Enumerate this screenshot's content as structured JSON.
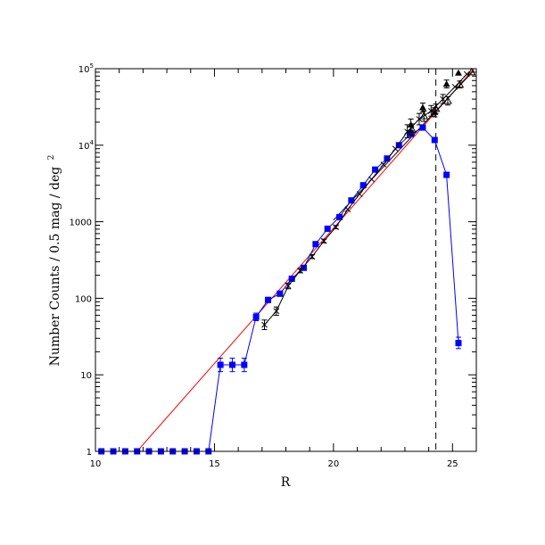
{
  "chart_data": {
    "type": "scatter",
    "xlabel": "R",
    "ylabel": "Number Counts / 0.5 mag / deg",
    "ylabel_sup": "2",
    "xlim": [
      10,
      26
    ],
    "ylim": [
      1,
      100000
    ],
    "yscale": "log",
    "x_ticks": [
      {
        "value": 10,
        "label": "10"
      },
      {
        "value": 15,
        "label": "15"
      },
      {
        "value": 20,
        "label": "20"
      },
      {
        "value": 25,
        "label": "25"
      }
    ],
    "y_ticks": [
      {
        "value": 1,
        "label": "1"
      },
      {
        "value": 10,
        "label": "10"
      },
      {
        "value": 100,
        "label": "100"
      },
      {
        "value": 1000,
        "label": "1000"
      },
      {
        "value": 10000,
        "label": "10",
        "sup": "4"
      },
      {
        "value": 100000,
        "label": "10",
        "sup": "5"
      }
    ],
    "vline": {
      "x": 24.3,
      "style": "dashed",
      "color": "#000000"
    },
    "series": [
      {
        "marker": "square",
        "color": "#0000ff",
        "connect": true,
        "points": [
          {
            "x": 10.25,
            "y": 1
          },
          {
            "x": 10.75,
            "y": 1
          },
          {
            "x": 11.25,
            "y": 1
          },
          {
            "x": 11.75,
            "y": 1
          },
          {
            "x": 12.25,
            "y": 1
          },
          {
            "x": 12.75,
            "y": 1
          },
          {
            "x": 13.25,
            "y": 1
          },
          {
            "x": 13.75,
            "y": 1
          },
          {
            "x": 14.25,
            "y": 1
          },
          {
            "x": 14.75,
            "y": 1
          },
          {
            "x": 15.25,
            "y": 13.5,
            "err": [
              11,
              16.5
            ]
          },
          {
            "x": 15.75,
            "y": 13.5,
            "err": [
              11,
              16.5
            ]
          },
          {
            "x": 16.25,
            "y": 13.5,
            "err": [
              11,
              16.5
            ]
          },
          {
            "x": 16.75,
            "y": 57,
            "err": [
              51,
              64
            ]
          },
          {
            "x": 17.25,
            "y": 95,
            "err": [
              88,
              103
            ]
          },
          {
            "x": 17.75,
            "y": 115,
            "err": [
              106,
              124
            ]
          },
          {
            "x": 18.25,
            "y": 180
          },
          {
            "x": 18.75,
            "y": 250
          },
          {
            "x": 19.25,
            "y": 510
          },
          {
            "x": 19.75,
            "y": 810
          },
          {
            "x": 20.25,
            "y": 1150
          },
          {
            "x": 20.75,
            "y": 1900
          },
          {
            "x": 21.25,
            "y": 3000
          },
          {
            "x": 21.75,
            "y": 4800
          },
          {
            "x": 22.25,
            "y": 6700
          },
          {
            "x": 22.75,
            "y": 10000
          },
          {
            "x": 23.25,
            "y": 14000
          },
          {
            "x": 23.75,
            "y": 17000
          },
          {
            "x": 24.25,
            "y": 11700
          },
          {
            "x": 24.75,
            "y": 4100
          },
          {
            "x": 25.25,
            "y": 26,
            "err": [
              22,
              31
            ]
          }
        ]
      },
      {
        "marker": "cross",
        "color": "#000000",
        "connect": true,
        "points": [
          {
            "x": 17.1,
            "y": 45,
            "err": [
              39,
              52
            ]
          },
          {
            "x": 17.6,
            "y": 68,
            "err": [
              60,
              77
            ]
          },
          {
            "x": 18.1,
            "y": 145,
            "err": [
              133,
              158
            ]
          },
          {
            "x": 18.6,
            "y": 230,
            "err": [
              215,
              246
            ]
          },
          {
            "x": 19.1,
            "y": 350,
            "err": [
              330,
              372
            ]
          },
          {
            "x": 19.6,
            "y": 560,
            "err": [
              530,
              592
            ]
          },
          {
            "x": 20.1,
            "y": 850,
            "err": [
              810,
              892
            ]
          },
          {
            "x": 20.6,
            "y": 1450
          },
          {
            "x": 21.1,
            "y": 2300
          },
          {
            "x": 21.6,
            "y": 3600
          },
          {
            "x": 22.1,
            "y": 5600
          },
          {
            "x": 22.6,
            "y": 9000
          },
          {
            "x": 23.1,
            "y": 15000,
            "err": [
              12500,
              18500
            ]
          },
          {
            "x": 23.6,
            "y": 22000,
            "err": [
              18500,
              26000
            ]
          },
          {
            "x": 24.1,
            "y": 28000,
            "err": [
              24000,
              33000
            ]
          },
          {
            "x": 24.6,
            "y": 40000,
            "err": [
              35000,
              46000
            ]
          },
          {
            "x": 25.1,
            "y": 58000
          },
          {
            "x": 25.6,
            "y": 85000
          }
        ]
      },
      {
        "marker": "triangle",
        "color": "#000000",
        "connect": false,
        "points": [
          {
            "x": 23.25,
            "y": 18500,
            "err": [
              15500,
              22000
            ]
          },
          {
            "x": 23.75,
            "y": 31000,
            "err": [
              27000,
              35500
            ]
          },
          {
            "x": 24.25,
            "y": 27000,
            "err": [
              23500,
              31000
            ]
          },
          {
            "x": 24.75,
            "y": 63000,
            "err": [
              56000,
              71000
            ]
          },
          {
            "x": 25.25,
            "y": 88000
          }
        ]
      },
      {
        "marker": "open-triangle",
        "color": "#000000",
        "connect": false,
        "points": [
          {
            "x": 23.3,
            "y": 16000,
            "err": [
              13500,
              19000
            ]
          },
          {
            "x": 23.8,
            "y": 24000,
            "err": [
              20500,
              28000
            ]
          },
          {
            "x": 24.3,
            "y": 30000,
            "err": [
              26000,
              34500
            ]
          },
          {
            "x": 24.8,
            "y": 38000,
            "err": [
              33500,
              43000
            ]
          },
          {
            "x": 25.3,
            "y": 62000,
            "err": [
              56000,
              69000
            ]
          },
          {
            "x": 25.8,
            "y": 90000
          }
        ]
      }
    ],
    "fit_lines": [
      {
        "color": "#ff0000",
        "from": {
          "x": 11.75,
          "y": 1
        },
        "to": {
          "x": 25.9,
          "y": 100000
        }
      },
      {
        "color": "#000000",
        "from": {
          "x": 20.0,
          "y": 1050
        },
        "to": {
          "x": 25.9,
          "y": 95000
        }
      }
    ]
  }
}
